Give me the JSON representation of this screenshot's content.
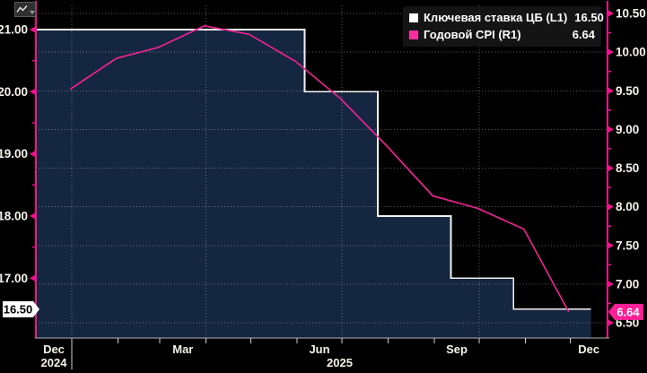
{
  "window": {
    "background": "#000000"
  },
  "toolbar": {
    "icon": "line-chart-with-dropdown"
  },
  "legend": {
    "items": [
      {
        "swatch_color": "#ffffff",
        "label": "Ключевая ставка ЦБ (L1)",
        "value": "16.50"
      },
      {
        "swatch_color": "#ff2f9f",
        "label": "Годовой CPI (R1)",
        "value": "6.64"
      }
    ]
  },
  "axes": {
    "left": {
      "id": "L1",
      "majors": [
        {
          "label": "21.00",
          "value": 21
        },
        {
          "label": "20.00",
          "value": 20
        },
        {
          "label": "19.00",
          "value": 19
        },
        {
          "label": "18.00",
          "value": 18
        },
        {
          "label": "17.00",
          "value": 17
        }
      ],
      "minors": [
        20.5,
        19.5,
        18.5,
        17.5
      ],
      "last_value_tag": {
        "text": "16.50",
        "value": 16.5,
        "bg": "#ffffff",
        "fg": "#000000"
      }
    },
    "right": {
      "id": "R1",
      "majors": [
        {
          "label": "10.50",
          "value": 10.5
        },
        {
          "label": "10.00",
          "value": 10
        },
        {
          "label": "9.50",
          "value": 9.5
        },
        {
          "label": "9.00",
          "value": 9
        },
        {
          "label": "8.50",
          "value": 8.5
        },
        {
          "label": "8.00",
          "value": 8
        },
        {
          "label": "7.50",
          "value": 7.5
        },
        {
          "label": "7.00",
          "value": 7
        },
        {
          "label": "6.50",
          "value": 6.5
        }
      ],
      "minors": [
        10.25,
        9.75,
        9.25,
        8.75,
        8.25,
        7.75,
        7.25,
        6.75
      ],
      "last_value_tag": {
        "text": "6.64",
        "value": 6.64,
        "bg": "#ff1f97",
        "fg": "#ffffff"
      }
    },
    "bottom": {
      "month_ticks": [
        "2025-01-01",
        "2025-02-01",
        "2025-03-01",
        "2025-04-01",
        "2025-05-01",
        "2025-06-01",
        "2025-07-01",
        "2025-08-01",
        "2025-09-01",
        "2025-10-01",
        "2025-11-01",
        "2025-12-01"
      ],
      "month_labels": [
        {
          "label": "Dec",
          "from": "2024-12-08",
          "to": "2025-01-01"
        },
        {
          "label": "Mar",
          "from": "2025-03-01",
          "to": "2025-04-01"
        },
        {
          "label": "Jun",
          "from": "2025-06-01",
          "to": "2025-07-01"
        },
        {
          "label": "Sep",
          "from": "2025-09-01",
          "to": "2025-10-01"
        },
        {
          "label": "Dec",
          "from": "2025-12-01",
          "to": "2025-12-26"
        }
      ],
      "year_labels": [
        {
          "label": "2024",
          "from": "2024-12-08",
          "to": "2025-01-01"
        },
        {
          "label": "2025",
          "from": "2025-01-01",
          "to": "2025-12-26"
        }
      ],
      "year_separators": [
        "2025-01-01"
      ]
    }
  },
  "colors": {
    "axis_line": "#f2118c",
    "axis_text": "#f7f2ea",
    "area_fill": "#152640",
    "key_rate_line": "#f2f2f2",
    "cpi_line": "#ea2490",
    "bottom_axis": "#b3b3b3",
    "bottom_tick": "#cfcfcf"
  },
  "chart_data": {
    "type": "line",
    "title": "",
    "x_domain": [
      "2024-12-08",
      "2025-12-26"
    ],
    "left_ylim": [
      16.05,
      21.4
    ],
    "right_ylim": [
      6.3,
      10.6
    ],
    "grid": "on",
    "legend_position": "top-right",
    "gridlines": {
      "horizontal_right_values": [
        10.5,
        10,
        9.5,
        9,
        8.5,
        8,
        7.5,
        7,
        6.5
      ],
      "vertical_dates": [
        "2025-01-01",
        "2025-04-01",
        "2025-07-01",
        "2025-10-01"
      ]
    },
    "series": [
      {
        "name": "Ключевая ставка ЦБ",
        "axis": "L1",
        "style": "step",
        "color": "#f2f2f2",
        "area_fill": "#152640",
        "last_value": 16.5,
        "points": [
          [
            "2024-12-08",
            21.0
          ],
          [
            "2025-06-06",
            21.0
          ],
          [
            "2025-06-06",
            20.0
          ],
          [
            "2025-07-25",
            20.0
          ],
          [
            "2025-07-25",
            18.0
          ],
          [
            "2025-09-12",
            18.0
          ],
          [
            "2025-09-12",
            17.0
          ],
          [
            "2025-10-24",
            17.0
          ],
          [
            "2025-10-24",
            16.5
          ],
          [
            "2025-12-15",
            16.5
          ]
        ]
      },
      {
        "name": "Годовой CPI",
        "axis": "R1",
        "style": "line",
        "color": "#ea2490",
        "last_value": 6.64,
        "points": [
          [
            "2024-12-31",
            9.52
          ],
          [
            "2025-01-31",
            9.92
          ],
          [
            "2025-02-28",
            10.06
          ],
          [
            "2025-03-31",
            10.34
          ],
          [
            "2025-04-30",
            10.23
          ],
          [
            "2025-05-31",
            9.88
          ],
          [
            "2025-06-30",
            9.4
          ],
          [
            "2025-07-31",
            8.79
          ],
          [
            "2025-08-31",
            8.14
          ],
          [
            "2025-09-30",
            7.98
          ],
          [
            "2025-10-31",
            7.71
          ],
          [
            "2025-11-30",
            6.64
          ]
        ]
      }
    ]
  }
}
